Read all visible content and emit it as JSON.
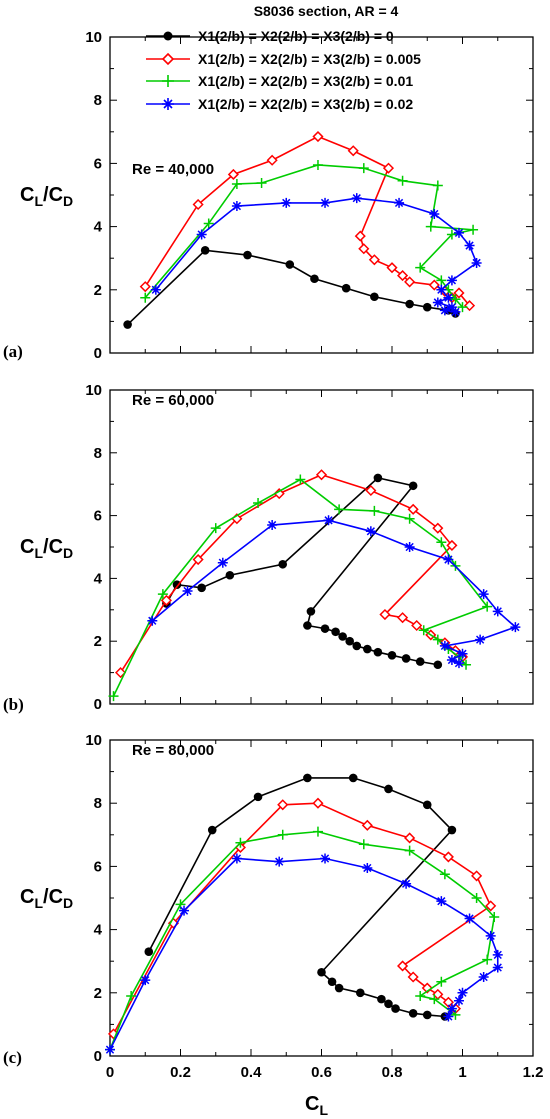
{
  "figure": {
    "title": "S8036 section, AR = 4",
    "xlabel_main": "C",
    "xlabel_sub": "L",
    "ylabel_num_main": "C",
    "ylabel_num_sub": "L",
    "ylabel_slash": "/",
    "ylabel_den_main": "C",
    "ylabel_den_sub": "D"
  },
  "legend": [
    {
      "label": "X1(2/b) = X2(2/b) = X3(2/b) = 0",
      "color": "#000000",
      "marker": "circle"
    },
    {
      "label": "X1(2/b) = X2(2/b) = X3(2/b) = 0.005",
      "color": "#ff0000",
      "marker": "diamond"
    },
    {
      "label": "X1(2/b) = X2(2/b) = X3(2/b) = 0.01",
      "color": "#00cc00",
      "marker": "plus"
    },
    {
      "label": "X1(2/b) = X2(2/b) = X3(2/b) = 0.02",
      "color": "#0000ff",
      "marker": "star"
    }
  ],
  "chart_data": [
    {
      "type": "line",
      "panel": "(a)",
      "annotation": "Re = 40,000",
      "xlim": [
        0,
        1.2
      ],
      "ylim": [
        0,
        10
      ],
      "xticks": [],
      "yticks": [
        "0",
        "2",
        "4",
        "6",
        "8",
        "10"
      ],
      "series": [
        {
          "name": "X1(2/b) = X2(2/b) = X3(2/b) = 0",
          "color": "#000000",
          "marker": "circle",
          "x": [
            0.05,
            0.27,
            0.39,
            0.51,
            0.58,
            0.67,
            0.75,
            0.85,
            0.9,
            0.96,
            0.98
          ],
          "y": [
            0.9,
            3.25,
            3.1,
            2.8,
            2.35,
            2.05,
            1.78,
            1.55,
            1.45,
            1.35,
            1.25
          ]
        },
        {
          "name": "X1(2/b) = X2(2/b) = X3(2/b) = 0.005",
          "color": "#ff0000",
          "marker": "diamond",
          "x": [
            0.1,
            0.25,
            0.35,
            0.46,
            0.59,
            0.69,
            0.79,
            0.71,
            0.72,
            0.75,
            0.8,
            0.83,
            0.85,
            0.92,
            0.95,
            0.97,
            0.99,
            1.02
          ],
          "y": [
            2.1,
            4.7,
            5.65,
            6.1,
            6.85,
            6.4,
            5.85,
            3.7,
            3.3,
            2.95,
            2.7,
            2.45,
            2.25,
            2.15,
            1.95,
            1.75,
            1.9,
            1.5
          ],
          "marker_count": 18
        },
        {
          "name": "X1(2/b) = X2(2/b) = X3(2/b) = 0.01",
          "color": "#00cc00",
          "marker": "plus",
          "x": [
            0.1,
            0.28,
            0.36,
            0.43,
            0.59,
            0.72,
            0.83,
            0.93,
            0.91,
            1.03,
            0.97,
            0.88,
            0.94,
            0.96,
            0.98,
            1.0
          ],
          "y": [
            1.75,
            4.1,
            5.35,
            5.38,
            5.95,
            5.85,
            5.45,
            5.3,
            4.0,
            3.9,
            3.75,
            2.7,
            2.3,
            2.0,
            1.7,
            1.45
          ],
          "marker_count": 16
        },
        {
          "name": "X1(2/b) = X2(2/b) = X3(2/b) = 0.02",
          "color": "#0000ff",
          "marker": "star",
          "x": [
            0.13,
            0.26,
            0.36,
            0.5,
            0.61,
            0.7,
            0.82,
            0.92,
            0.99,
            1.02,
            1.04,
            0.97,
            0.94,
            0.96,
            0.93,
            0.97,
            0.95,
            0.98
          ],
          "y": [
            2.0,
            3.75,
            4.65,
            4.75,
            4.75,
            4.9,
            4.75,
            4.4,
            3.8,
            3.4,
            2.85,
            2.3,
            2.0,
            1.75,
            1.6,
            1.45,
            1.35,
            1.3
          ],
          "marker_count": 18
        }
      ]
    },
    {
      "type": "line",
      "panel": "(b)",
      "annotation": "Re = 60,000",
      "xlim": [
        0,
        1.2
      ],
      "ylim": [
        0,
        10
      ],
      "xticks": [],
      "yticks": [
        "0",
        "2",
        "4",
        "6",
        "8",
        "10"
      ],
      "series": [
        {
          "name": "X1(2/b) = X2(2/b) = X3(2/b) = 0",
          "color": "#000000",
          "marker": "circle",
          "x": [
            0.16,
            0.19,
            0.26,
            0.34,
            0.49,
            0.76,
            0.86,
            0.57,
            0.56,
            0.61,
            0.64,
            0.66,
            0.68,
            0.7,
            0.73,
            0.76,
            0.8,
            0.84,
            0.88,
            0.93
          ],
          "y": [
            3.2,
            3.8,
            3.7,
            4.1,
            4.45,
            7.2,
            6.95,
            2.95,
            2.5,
            2.4,
            2.3,
            2.15,
            2.0,
            1.85,
            1.75,
            1.65,
            1.55,
            1.45,
            1.35,
            1.25
          ]
        },
        {
          "name": "X1(2/b) = X2(2/b) = X3(2/b) = 0.005",
          "color": "#ff0000",
          "marker": "diamond",
          "x": [
            0.03,
            0.16,
            0.25,
            0.36,
            0.48,
            0.6,
            0.74,
            0.86,
            0.93,
            0.97,
            0.78,
            0.83,
            0.87,
            0.91,
            0.95,
            0.98,
            1.0
          ],
          "y": [
            1.0,
            3.3,
            4.6,
            5.9,
            6.7,
            7.3,
            6.8,
            6.2,
            5.6,
            5.05,
            2.85,
            2.75,
            2.5,
            2.2,
            1.95,
            1.7,
            1.5
          ]
        },
        {
          "name": "X1(2/b) = X2(2/b) = X3(2/b) = 0.01",
          "color": "#00cc00",
          "marker": "plus",
          "x": [
            0.01,
            0.15,
            0.3,
            0.42,
            0.54,
            0.65,
            0.75,
            0.85,
            0.94,
            0.98,
            1.07,
            0.89,
            0.93,
            0.96,
            0.99,
            1.01
          ],
          "y": [
            0.25,
            3.5,
            5.6,
            6.4,
            7.15,
            6.2,
            6.15,
            5.9,
            5.15,
            4.4,
            3.1,
            2.35,
            2.05,
            1.75,
            1.5,
            1.25
          ]
        },
        {
          "name": "X1(2/b) = X2(2/b) = X3(2/b) = 0.02",
          "color": "#0000ff",
          "marker": "star",
          "x": [
            0.12,
            0.22,
            0.32,
            0.46,
            0.62,
            0.74,
            0.85,
            0.96,
            1.06,
            1.1,
            1.15,
            1.05,
            0.95,
            1.0,
            0.97,
            0.99
          ],
          "y": [
            2.65,
            3.6,
            4.5,
            5.7,
            5.85,
            5.5,
            5.0,
            4.6,
            3.5,
            2.95,
            2.45,
            2.05,
            1.85,
            1.6,
            1.4,
            1.3
          ]
        }
      ]
    },
    {
      "type": "line",
      "panel": "(c)",
      "annotation": "Re = 80,000",
      "xlim": [
        0,
        1.2
      ],
      "ylim": [
        0,
        10
      ],
      "xticks": [
        "0",
        "0.2",
        "0.4",
        "0.6",
        "0.8",
        "1",
        "1.2"
      ],
      "yticks": [
        "0",
        "2",
        "4",
        "6",
        "8",
        "10"
      ],
      "series": [
        {
          "name": "X1(2/b) = X2(2/b) = X3(2/b) = 0",
          "color": "#000000",
          "marker": "circle",
          "x": [
            0.11,
            0.29,
            0.42,
            0.56,
            0.69,
            0.79,
            0.9,
            0.97,
            0.6,
            0.63,
            0.65,
            0.71,
            0.77,
            0.79,
            0.81,
            0.86,
            0.9,
            0.95
          ],
          "y": [
            3.3,
            7.15,
            8.2,
            8.8,
            8.8,
            8.45,
            7.95,
            7.15,
            2.65,
            2.35,
            2.15,
            2.0,
            1.8,
            1.65,
            1.5,
            1.35,
            1.3,
            1.25
          ]
        },
        {
          "name": "X1(2/b) = X2(2/b) = X3(2/b) = 0.005",
          "color": "#ff0000",
          "marker": "diamond",
          "x": [
            0.01,
            0.18,
            0.37,
            0.49,
            0.59,
            0.73,
            0.85,
            0.96,
            1.04,
            1.08,
            0.83,
            0.86,
            0.9,
            0.93,
            0.96,
            0.98
          ],
          "y": [
            0.7,
            4.2,
            6.6,
            7.95,
            8.0,
            7.3,
            6.9,
            6.3,
            5.7,
            4.75,
            2.85,
            2.5,
            2.15,
            1.95,
            1.7,
            1.5
          ]
        },
        {
          "name": "X1(2/b) = X2(2/b) = X3(2/b) = 0.01",
          "color": "#00cc00",
          "marker": "plus",
          "x": [
            0.0,
            0.06,
            0.2,
            0.37,
            0.49,
            0.59,
            0.72,
            0.85,
            0.95,
            1.04,
            1.09,
            1.07,
            0.94,
            0.88,
            0.92,
            0.98
          ],
          "y": [
            0.2,
            1.9,
            4.8,
            6.75,
            7.0,
            7.1,
            6.7,
            6.5,
            5.75,
            5.0,
            4.4,
            3.05,
            2.35,
            1.9,
            1.8,
            1.3
          ]
        },
        {
          "name": "X1(2/b) = X2(2/b) = X3(2/b) = 0.02",
          "color": "#0000ff",
          "marker": "star",
          "x": [
            0.0,
            0.1,
            0.21,
            0.36,
            0.48,
            0.61,
            0.73,
            0.84,
            0.94,
            1.02,
            1.08,
            1.1,
            1.1,
            1.06,
            1.0,
            0.99,
            0.97,
            0.96
          ],
          "y": [
            0.2,
            2.4,
            4.6,
            6.25,
            6.15,
            6.25,
            5.95,
            5.45,
            4.9,
            4.35,
            3.8,
            3.2,
            2.8,
            2.5,
            2.0,
            1.75,
            1.5,
            1.25
          ]
        }
      ]
    }
  ]
}
